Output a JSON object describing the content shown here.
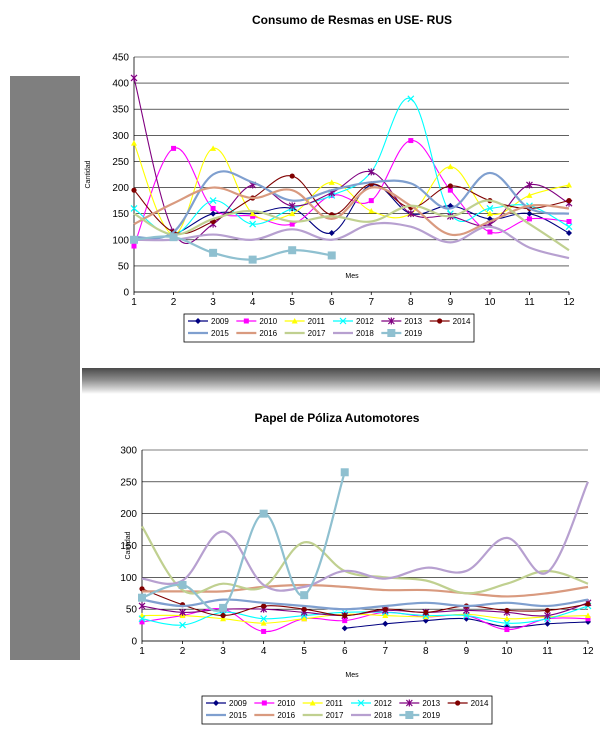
{
  "chart_data": [
    {
      "type": "line",
      "title": "Consumo de Resmas en USE- RUS",
      "xlabel": "Mes",
      "ylabel": "Cantidad",
      "x": [
        1,
        2,
        3,
        4,
        5,
        6,
        7,
        8,
        9,
        10,
        11,
        12
      ],
      "ylim": [
        0,
        450
      ],
      "yticks": [
        0,
        50,
        100,
        150,
        200,
        250,
        300,
        350,
        400,
        450
      ],
      "grid": true,
      "legend": "bottom",
      "series": [
        {
          "name": "2009",
          "color": "#000080",
          "marker": "diamond",
          "values": [
            100,
            110,
            150,
            150,
            160,
            113,
            205,
            150,
            165,
            140,
            150,
            113
          ]
        },
        {
          "name": "2010",
          "color": "#ff00ff",
          "marker": "square",
          "values": [
            88,
            275,
            160,
            145,
            130,
            185,
            175,
            290,
            195,
            115,
            140,
            135
          ]
        },
        {
          "name": "2011",
          "color": "#ffff00",
          "marker": "triangle",
          "values": [
            285,
            110,
            275,
            150,
            150,
            210,
            155,
            150,
            240,
            150,
            185,
            205
          ]
        },
        {
          "name": "2012",
          "color": "#00ffff",
          "marker": "x",
          "values": [
            160,
            110,
            175,
            130,
            160,
            185,
            230,
            370,
            150,
            160,
            165,
            125
          ]
        },
        {
          "name": "2013",
          "color": "#800080",
          "marker": "star",
          "values": [
            410,
            115,
            130,
            205,
            165,
            190,
            230,
            150,
            145,
            130,
            205,
            170
          ]
        },
        {
          "name": "2014",
          "color": "#800000",
          "marker": "circle",
          "values": [
            195,
            115,
            135,
            180,
            222,
            148,
            207,
            162,
            203,
            175,
            160,
            175
          ]
        },
        {
          "name": "2015",
          "color": "#7f9fcf",
          "marker": "none",
          "values": [
            105,
            115,
            225,
            210,
            175,
            195,
            210,
            208,
            160,
            228,
            160,
            150
          ]
        },
        {
          "name": "2016",
          "color": "#d99a7f",
          "marker": "none",
          "values": [
            130,
            170,
            200,
            180,
            195,
            140,
            200,
            165,
            110,
            135,
            165,
            160
          ]
        },
        {
          "name": "2017",
          "color": "#c0d090",
          "marker": "none",
          "values": [
            150,
            110,
            140,
            155,
            135,
            145,
            135,
            165,
            145,
            175,
            130,
            80
          ]
        },
        {
          "name": "2018",
          "color": "#b7a0d0",
          "marker": "none",
          "values": [
            100,
            100,
            110,
            100,
            120,
            100,
            130,
            125,
            95,
            125,
            85,
            65
          ]
        },
        {
          "name": "2019",
          "color": "#8fc0d0",
          "marker": "bigsquare",
          "values": [
            100,
            105,
            75,
            62,
            80,
            70,
            null,
            null,
            null,
            null,
            null,
            null
          ]
        }
      ]
    },
    {
      "type": "line",
      "title": "Papel de Póliza Automotores",
      "xlabel": "Mes",
      "ylabel": "Cantidad",
      "x": [
        1,
        2,
        3,
        4,
        5,
        6,
        7,
        8,
        9,
        10,
        11,
        12
      ],
      "ylim": [
        0,
        300
      ],
      "yticks": [
        0,
        50,
        100,
        150,
        200,
        250,
        300
      ],
      "grid": true,
      "legend": "bottom",
      "series": [
        {
          "name": "2009",
          "color": "#000080",
          "marker": "diamond",
          "values": [
            null,
            null,
            null,
            null,
            null,
            20,
            27,
            32,
            35,
            22,
            27,
            30
          ]
        },
        {
          "name": "2010",
          "color": "#ff00ff",
          "marker": "square",
          "values": [
            30,
            40,
            50,
            15,
            35,
            32,
            45,
            38,
            40,
            18,
            35,
            35
          ]
        },
        {
          "name": "2011",
          "color": "#ffff00",
          "marker": "triangle",
          "values": [
            40,
            40,
            35,
            28,
            35,
            42,
            40,
            38,
            42,
            35,
            38,
            40
          ]
        },
        {
          "name": "2012",
          "color": "#00ffff",
          "marker": "x",
          "values": [
            35,
            25,
            45,
            35,
            40,
            45,
            45,
            40,
            40,
            28,
            35,
            55
          ]
        },
        {
          "name": "2013",
          "color": "#800080",
          "marker": "star",
          "values": [
            55,
            45,
            50,
            50,
            45,
            40,
            48,
            45,
            48,
            45,
            40,
            60
          ]
        },
        {
          "name": "2014",
          "color": "#800000",
          "marker": "circle",
          "values": [
            82,
            57,
            40,
            55,
            50,
            40,
            50,
            45,
            55,
            48,
            48,
            58
          ]
        },
        {
          "name": "2015",
          "color": "#7f9fcf",
          "marker": "none",
          "values": [
            65,
            55,
            65,
            60,
            55,
            50,
            55,
            60,
            55,
            60,
            55,
            65
          ]
        },
        {
          "name": "2016",
          "color": "#d99a7f",
          "marker": "none",
          "values": [
            78,
            78,
            78,
            85,
            88,
            85,
            80,
            80,
            75,
            70,
            75,
            85
          ]
        },
        {
          "name": "2017",
          "color": "#c0d090",
          "marker": "none",
          "values": [
            180,
            80,
            90,
            85,
            155,
            110,
            100,
            95,
            75,
            90,
            110,
            90
          ]
        },
        {
          "name": "2018",
          "color": "#b7a0d0",
          "marker": "none",
          "values": [
            98,
            95,
            172,
            88,
            85,
            110,
            98,
            115,
            110,
            162,
            108,
            250
          ]
        },
        {
          "name": "2019",
          "color": "#8fc0d0",
          "marker": "bigsquare",
          "values": [
            68,
            88,
            52,
            200,
            72,
            265,
            null,
            null,
            null,
            null,
            null,
            null
          ]
        }
      ]
    }
  ]
}
